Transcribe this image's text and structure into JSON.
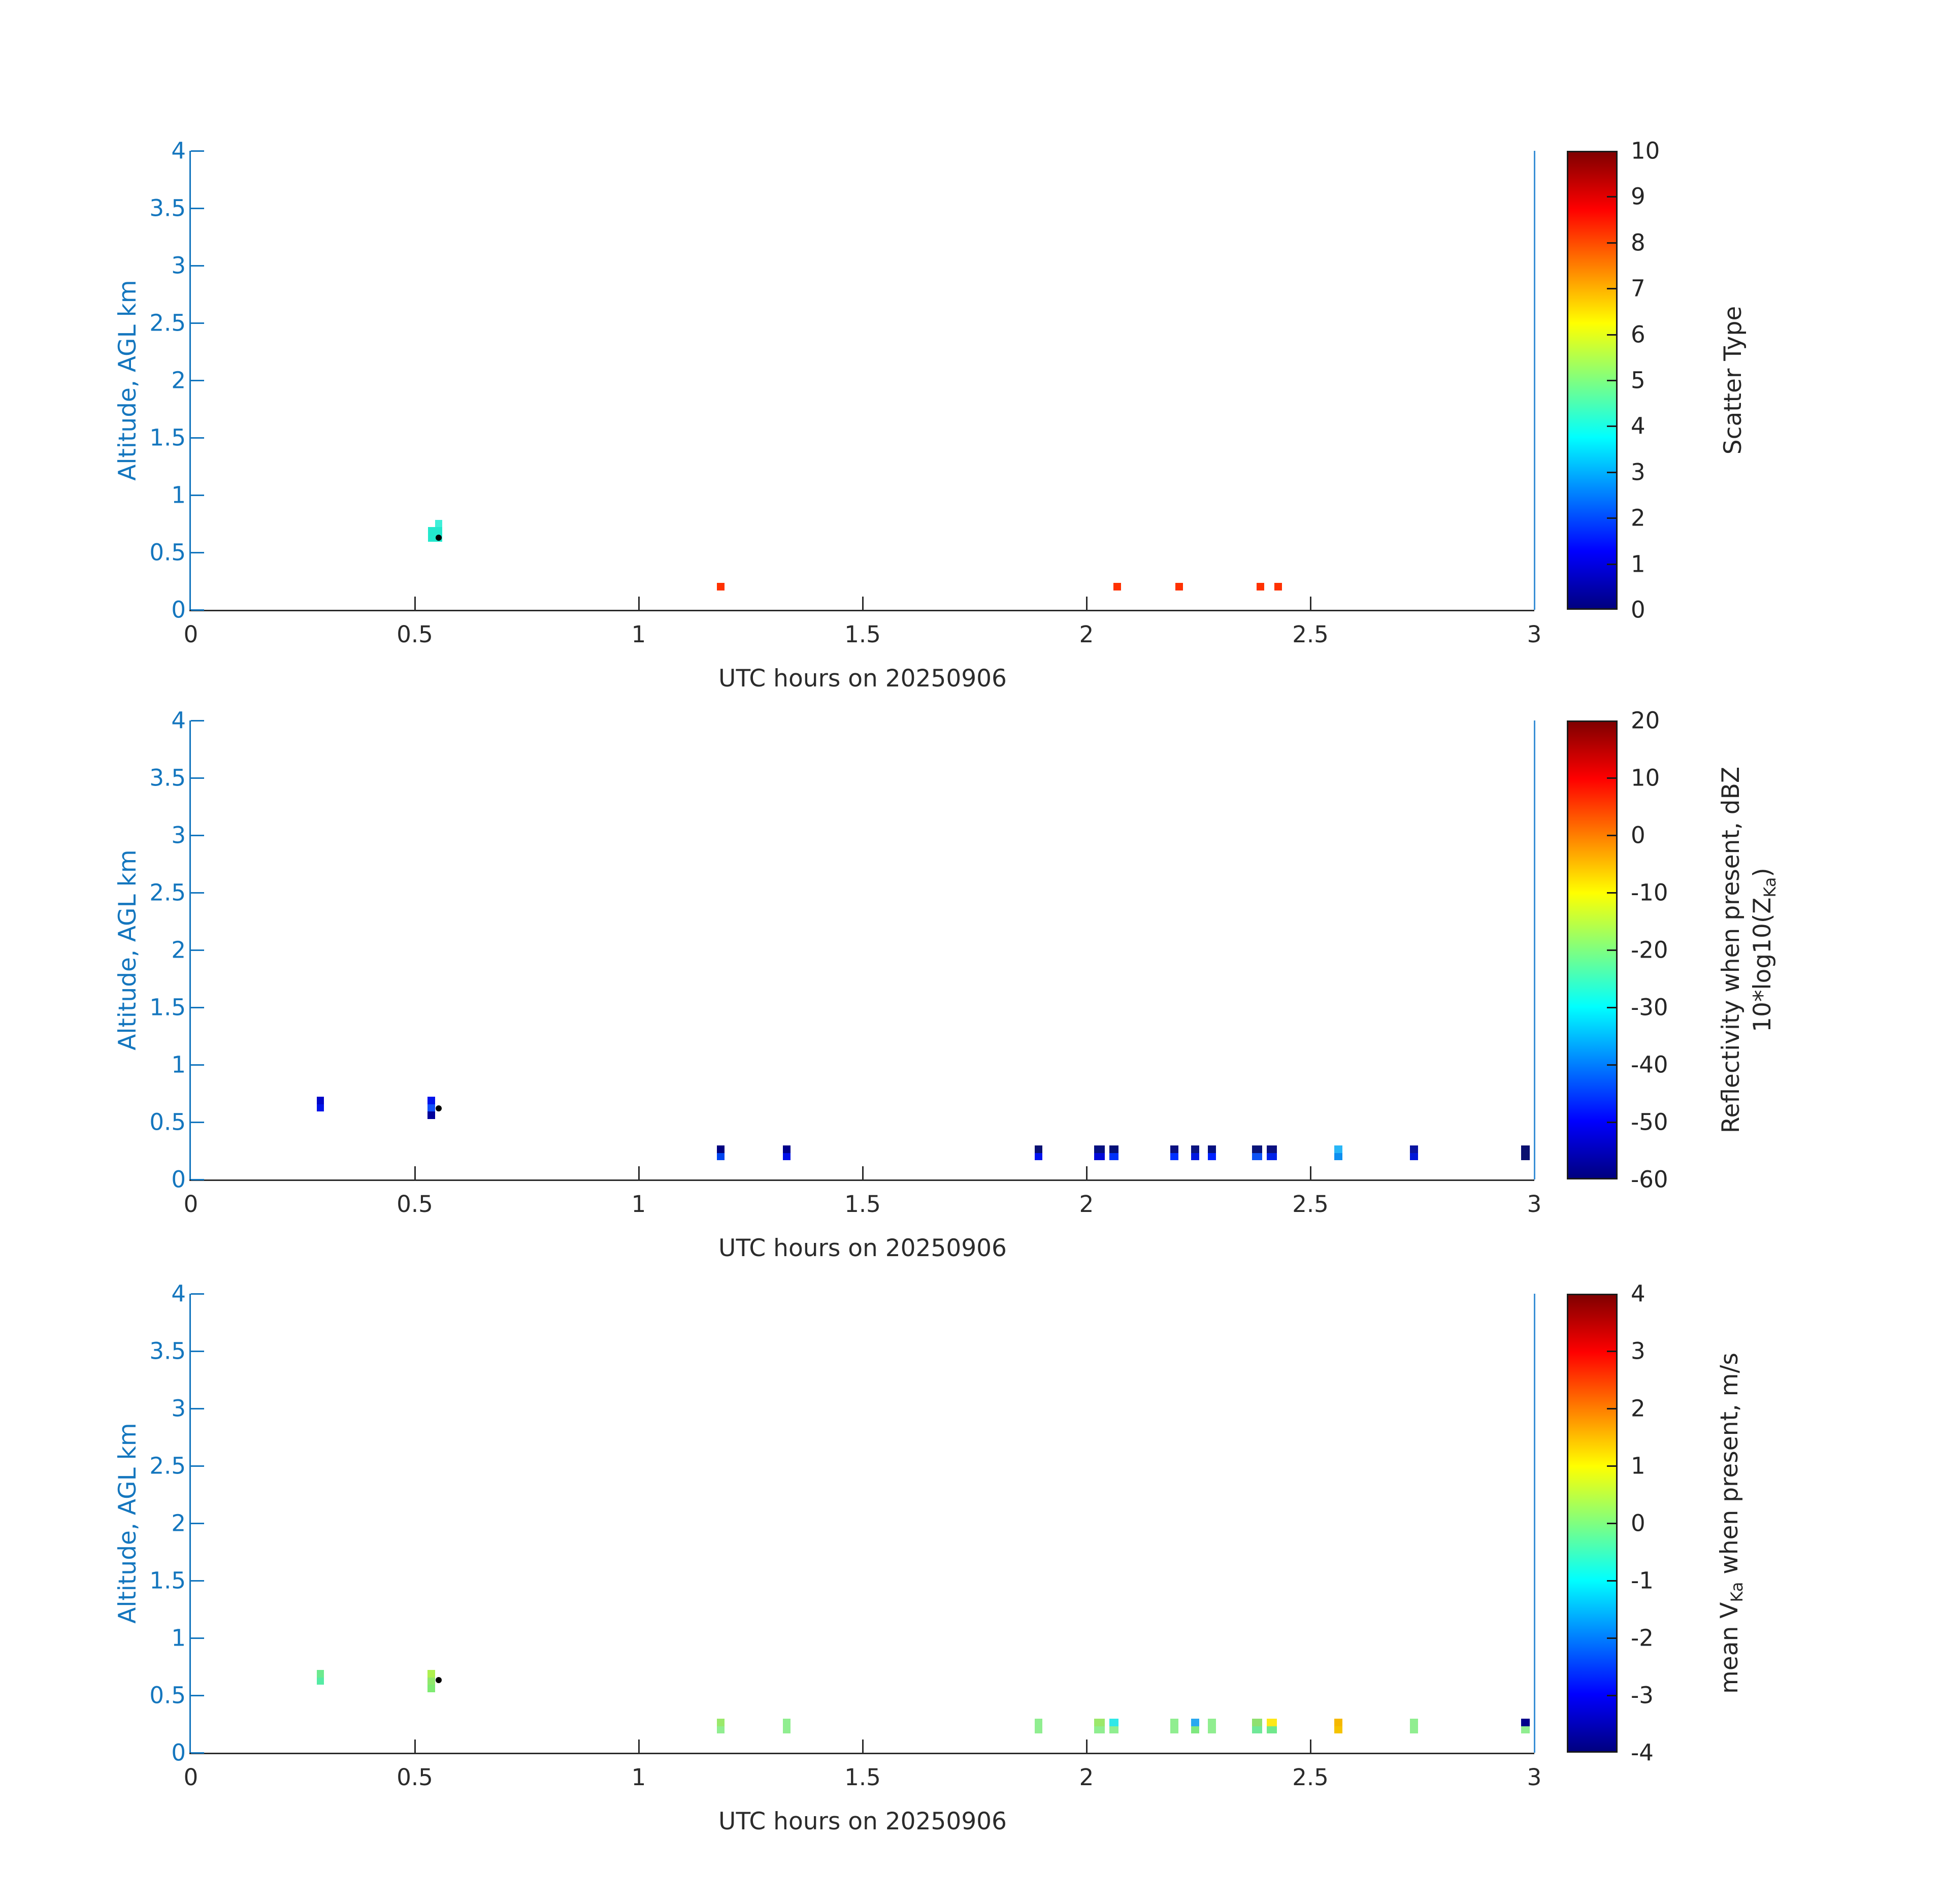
{
  "axes": {
    "xlabel": "UTC hours on 20250906",
    "ylabel": "Altitude, AGL km",
    "xlim": [
      0,
      3
    ],
    "ylim": [
      0,
      4
    ],
    "xticks": [
      {
        "v": 0,
        "t": "0"
      },
      {
        "v": 0.5,
        "t": "0.5"
      },
      {
        "v": 1,
        "t": "1"
      },
      {
        "v": 1.5,
        "t": "1.5"
      },
      {
        "v": 2,
        "t": "2"
      },
      {
        "v": 2.5,
        "t": "2.5"
      },
      {
        "v": 3,
        "t": "3"
      }
    ],
    "yticks": [
      {
        "v": 0,
        "t": "0"
      },
      {
        "v": 0.5,
        "t": "0.5"
      },
      {
        "v": 1,
        "t": "1"
      },
      {
        "v": 1.5,
        "t": "1.5"
      },
      {
        "v": 2,
        "t": "2"
      },
      {
        "v": 2.5,
        "t": "2.5"
      },
      {
        "v": 3,
        "t": "3"
      },
      {
        "v": 3.5,
        "t": "3.5"
      },
      {
        "v": 4,
        "t": "4"
      }
    ],
    "colors": {
      "y_axis": "#1476be",
      "x_axis": "#2b2b2b",
      "end_line": "#3a8fd6",
      "marker": "#000000",
      "colormap": "jet"
    }
  },
  "chart_data": [
    {
      "type": "heatmap",
      "name": "scatter-type",
      "colorbar": {
        "range": [
          0,
          10
        ],
        "ticks": [
          {
            "v": 10,
            "t": "10"
          },
          {
            "v": 9,
            "t": "9"
          },
          {
            "v": 8,
            "t": "8"
          },
          {
            "v": 7,
            "t": "7"
          },
          {
            "v": 6,
            "t": "6"
          },
          {
            "v": 5,
            "t": "5"
          },
          {
            "v": 4,
            "t": "4"
          },
          {
            "v": 3,
            "t": "3"
          },
          {
            "v": 2,
            "t": "2"
          },
          {
            "v": 1,
            "t": "1"
          },
          {
            "v": 0,
            "t": "0"
          }
        ],
        "label_lines": [
          [
            {
              "t": "Scatter Type"
            }
          ]
        ]
      },
      "marker": {
        "x": 0.553,
        "y": 0.627
      },
      "cells": [
        {
          "x": [
            0.529,
            0.561
          ],
          "y": [
            0.592,
            0.72
          ],
          "v": 4,
          "c": "#23e8cd"
        },
        {
          "x": [
            0.545,
            0.561
          ],
          "y": [
            0.72,
            0.784
          ],
          "v": 4,
          "c": "#3fefd9"
        },
        {
          "x": [
            1.175,
            1.192
          ],
          "y": [
            0.17,
            0.235
          ],
          "v": 8,
          "c": "#ff3100"
        },
        {
          "x": [
            2.06,
            2.077
          ],
          "y": [
            0.17,
            0.235
          ],
          "v": 8,
          "c": "#ff3100"
        },
        {
          "x": [
            2.198,
            2.215
          ],
          "y": [
            0.17,
            0.235
          ],
          "v": 8,
          "c": "#ff3100"
        },
        {
          "x": [
            2.38,
            2.397
          ],
          "y": [
            0.17,
            0.235
          ],
          "v": 8,
          "c": "#ff3100"
        },
        {
          "x": [
            2.42,
            2.437
          ],
          "y": [
            0.17,
            0.235
          ],
          "v": 8,
          "c": "#ff3100"
        }
      ]
    },
    {
      "type": "heatmap",
      "name": "reflectivity",
      "colorbar": {
        "range": [
          -60,
          20
        ],
        "ticks": [
          {
            "v": 20,
            "t": "20"
          },
          {
            "v": 10,
            "t": "10"
          },
          {
            "v": 0,
            "t": "0"
          },
          {
            "v": -10,
            "t": "-10"
          },
          {
            "v": -20,
            "t": "-20"
          },
          {
            "v": -30,
            "t": "-30"
          },
          {
            "v": -40,
            "t": "-40"
          },
          {
            "v": -50,
            "t": "-50"
          },
          {
            "v": -60,
            "t": "-60"
          }
        ],
        "label_lines": [
          [
            {
              "t": "Reflectivity when present, dBZ"
            }
          ],
          [
            {
              "t": "10*log10(Z"
            },
            {
              "sub": "Ka"
            },
            {
              "t": ")"
            }
          ]
        ]
      },
      "marker": {
        "x": 0.553,
        "y": 0.62
      },
      "cells": [
        {
          "x": [
            0.281,
            0.297
          ],
          "y": [
            0.656,
            0.72
          ],
          "v": -53,
          "c": "#0006c8"
        },
        {
          "x": [
            0.281,
            0.297
          ],
          "y": [
            0.592,
            0.656
          ],
          "v": -51,
          "c": "#0013e8"
        },
        {
          "x": [
            0.528,
            0.545
          ],
          "y": [
            0.656,
            0.72
          ],
          "v": -51,
          "c": "#0013ec"
        },
        {
          "x": [
            0.528,
            0.545
          ],
          "y": [
            0.592,
            0.656
          ],
          "v": -45,
          "c": "#1150fa"
        },
        {
          "x": [
            0.528,
            0.545
          ],
          "y": [
            0.528,
            0.592
          ],
          "v": -57,
          "c": "#00009b"
        },
        {
          "x": [
            1.175,
            1.192
          ],
          "y": [
            0.232,
            0.296
          ],
          "v": -58,
          "c": "#000080"
        },
        {
          "x": [
            1.175,
            1.192
          ],
          "y": [
            0.168,
            0.232
          ],
          "v": -46,
          "c": "#0044f0"
        },
        {
          "x": [
            1.322,
            1.339
          ],
          "y": [
            0.232,
            0.296
          ],
          "v": -57,
          "c": "#000089"
        },
        {
          "x": [
            1.322,
            1.339
          ],
          "y": [
            0.168,
            0.232
          ],
          "v": -51,
          "c": "#0010e8"
        },
        {
          "x": [
            1.884,
            1.901
          ],
          "y": [
            0.232,
            0.296
          ],
          "v": -58,
          "c": "#0a1172"
        },
        {
          "x": [
            1.884,
            1.901
          ],
          "y": [
            0.168,
            0.232
          ],
          "v": -51,
          "c": "#0013f0"
        },
        {
          "x": [
            2.017,
            2.041
          ],
          "y": [
            0.232,
            0.296
          ],
          "v": -58,
          "c": "#051080"
        },
        {
          "x": [
            2.017,
            2.041
          ],
          "y": [
            0.168,
            0.232
          ],
          "v": -52,
          "c": "#000ad8"
        },
        {
          "x": [
            2.051,
            2.072
          ],
          "y": [
            0.232,
            0.296
          ],
          "v": -58,
          "c": "#041078"
        },
        {
          "x": [
            2.051,
            2.072
          ],
          "y": [
            0.168,
            0.232
          ],
          "v": -48,
          "c": "#0031f8"
        },
        {
          "x": [
            2.187,
            2.205
          ],
          "y": [
            0.232,
            0.296
          ],
          "v": -58,
          "c": "#0a1080"
        },
        {
          "x": [
            2.187,
            2.205
          ],
          "y": [
            0.168,
            0.232
          ],
          "v": -48,
          "c": "#0030ff"
        },
        {
          "x": [
            2.234,
            2.252
          ],
          "y": [
            0.232,
            0.296
          ],
          "v": -58,
          "c": "#0a1480"
        },
        {
          "x": [
            2.234,
            2.252
          ],
          "y": [
            0.168,
            0.232
          ],
          "v": -51,
          "c": "#0018e0"
        },
        {
          "x": [
            2.271,
            2.289
          ],
          "y": [
            0.232,
            0.296
          ],
          "v": -58,
          "c": "#051080"
        },
        {
          "x": [
            2.271,
            2.289
          ],
          "y": [
            0.168,
            0.232
          ],
          "v": -49,
          "c": "#0022ff"
        },
        {
          "x": [
            2.37,
            2.392
          ],
          "y": [
            0.232,
            0.296
          ],
          "v": -58,
          "c": "#0a1478"
        },
        {
          "x": [
            2.37,
            2.392
          ],
          "y": [
            0.168,
            0.232
          ],
          "v": -44,
          "c": "#0d52f5"
        },
        {
          "x": [
            2.403,
            2.425
          ],
          "y": [
            0.232,
            0.296
          ],
          "v": -58,
          "c": "#0a1080"
        },
        {
          "x": [
            2.403,
            2.425
          ],
          "y": [
            0.168,
            0.232
          ],
          "v": -49,
          "c": "#0022e8"
        },
        {
          "x": [
            2.553,
            2.572
          ],
          "y": [
            0.232,
            0.296
          ],
          "v": -37,
          "c": "#29b6f6"
        },
        {
          "x": [
            2.553,
            2.572
          ],
          "y": [
            0.168,
            0.232
          ],
          "v": -40,
          "c": "#0d8ff0"
        },
        {
          "x": [
            2.722,
            2.74
          ],
          "y": [
            0.232,
            0.296
          ],
          "v": -56,
          "c": "#0a14a0"
        },
        {
          "x": [
            2.722,
            2.74
          ],
          "y": [
            0.168,
            0.232
          ],
          "v": -51,
          "c": "#0018d8"
        },
        {
          "x": [
            2.971,
            2.99
          ],
          "y": [
            0.168,
            0.296
          ],
          "v": -58,
          "c": "#0a1070"
        }
      ]
    },
    {
      "type": "heatmap",
      "name": "mean-velocity",
      "colorbar": {
        "range": [
          -4,
          4
        ],
        "ticks": [
          {
            "v": 4,
            "t": "4"
          },
          {
            "v": 3,
            "t": "3"
          },
          {
            "v": 2,
            "t": "2"
          },
          {
            "v": 1,
            "t": "1"
          },
          {
            "v": 0,
            "t": "0"
          },
          {
            "v": -1,
            "t": "-1"
          },
          {
            "v": -2,
            "t": "-2"
          },
          {
            "v": -3,
            "t": "-3"
          },
          {
            "v": -4,
            "t": "-4"
          }
        ],
        "label_lines": [
          [
            {
              "t": "mean V"
            },
            {
              "sub": "Ka"
            },
            {
              "t": " when present, m/s"
            }
          ]
        ]
      },
      "marker": {
        "x": 0.553,
        "y": 0.634
      },
      "cells": [
        {
          "x": [
            0.281,
            0.297
          ],
          "y": [
            0.656,
            0.72
          ],
          "v": -0.4,
          "c": "#6ce98f"
        },
        {
          "x": [
            0.281,
            0.297
          ],
          "y": [
            0.592,
            0.656
          ],
          "v": -0.6,
          "c": "#55eba4"
        },
        {
          "x": [
            0.528,
            0.545
          ],
          "y": [
            0.656,
            0.72
          ],
          "v": 0.3,
          "c": "#aef04f"
        },
        {
          "x": [
            0.528,
            0.545
          ],
          "y": [
            0.592,
            0.656
          ],
          "v": -0.1,
          "c": "#8fe86b"
        },
        {
          "x": [
            0.528,
            0.545
          ],
          "y": [
            0.528,
            0.592
          ],
          "v": -0.2,
          "c": "#7feb72"
        },
        {
          "x": [
            1.175,
            1.192
          ],
          "y": [
            0.232,
            0.296
          ],
          "v": 0.0,
          "c": "#9ae96b"
        },
        {
          "x": [
            1.175,
            1.192
          ],
          "y": [
            0.168,
            0.232
          ],
          "v": -0.2,
          "c": "#90ee90"
        },
        {
          "x": [
            1.322,
            1.339
          ],
          "y": [
            0.168,
            0.296
          ],
          "v": -0.2,
          "c": "#90ee90"
        },
        {
          "x": [
            1.884,
            1.901
          ],
          "y": [
            0.168,
            0.296
          ],
          "v": -0.2,
          "c": "#90ee90"
        },
        {
          "x": [
            2.017,
            2.041
          ],
          "y": [
            0.232,
            0.296
          ],
          "v": 0.0,
          "c": "#9ce86b"
        },
        {
          "x": [
            2.017,
            2.041
          ],
          "y": [
            0.168,
            0.232
          ],
          "v": -0.2,
          "c": "#90ee90"
        },
        {
          "x": [
            2.051,
            2.072
          ],
          "y": [
            0.232,
            0.296
          ],
          "v": -1.1,
          "c": "#30e8e8"
        },
        {
          "x": [
            2.051,
            2.072
          ],
          "y": [
            0.168,
            0.232
          ],
          "v": -0.2,
          "c": "#90ee90"
        },
        {
          "x": [
            2.187,
            2.205
          ],
          "y": [
            0.168,
            0.296
          ],
          "v": -0.2,
          "c": "#90ee90"
        },
        {
          "x": [
            2.234,
            2.252
          ],
          "y": [
            0.232,
            0.296
          ],
          "v": -2.1,
          "c": "#29a8f0"
        },
        {
          "x": [
            2.234,
            2.252
          ],
          "y": [
            0.168,
            0.232
          ],
          "v": -0.3,
          "c": "#7fe87f"
        },
        {
          "x": [
            2.271,
            2.289
          ],
          "y": [
            0.168,
            0.296
          ],
          "v": -0.2,
          "c": "#90ee90"
        },
        {
          "x": [
            2.37,
            2.392
          ],
          "y": [
            0.232,
            0.296
          ],
          "v": -0.1,
          "c": "#8fe070"
        },
        {
          "x": [
            2.37,
            2.392
          ],
          "y": [
            0.168,
            0.232
          ],
          "v": -0.4,
          "c": "#70e898"
        },
        {
          "x": [
            2.403,
            2.425
          ],
          "y": [
            0.232,
            0.296
          ],
          "v": 1.1,
          "c": "#ffe818"
        },
        {
          "x": [
            2.403,
            2.425
          ],
          "y": [
            0.168,
            0.232
          ],
          "v": -0.4,
          "c": "#70e88c"
        },
        {
          "x": [
            2.553,
            2.572
          ],
          "y": [
            0.232,
            0.296
          ],
          "v": 1.7,
          "c": "#f5b800"
        },
        {
          "x": [
            2.553,
            2.572
          ],
          "y": [
            0.168,
            0.232
          ],
          "v": 1.5,
          "c": "#f5c400"
        },
        {
          "x": [
            2.722,
            2.74
          ],
          "y": [
            0.168,
            0.296
          ],
          "v": -0.2,
          "c": "#90ee90"
        },
        {
          "x": [
            2.971,
            2.99
          ],
          "y": [
            0.232,
            0.296
          ],
          "v": -3.7,
          "c": "#00008b"
        },
        {
          "x": [
            2.971,
            2.99
          ],
          "y": [
            0.168,
            0.232
          ],
          "v": -0.2,
          "c": "#90ee90"
        }
      ]
    }
  ]
}
